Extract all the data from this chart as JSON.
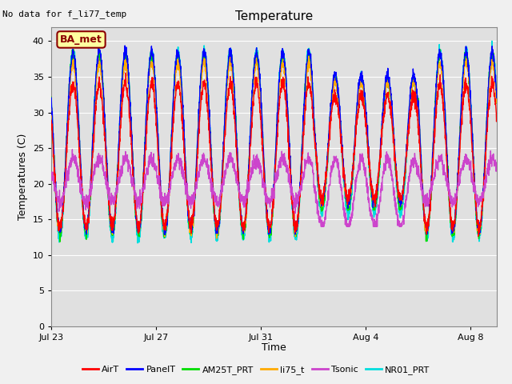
{
  "title": "Temperature",
  "xlabel": "Time",
  "ylabel": "Temperatures (C)",
  "note": "No data for f_li77_temp",
  "legend_label": "BA_met",
  "ylim": [
    0,
    42
  ],
  "yticks": [
    0,
    5,
    10,
    15,
    20,
    25,
    30,
    35,
    40
  ],
  "series": {
    "AirT": {
      "color": "#ff0000",
      "lw": 1.0
    },
    "PanelT": {
      "color": "#0000ff",
      "lw": 1.0
    },
    "AM25T_PRT": {
      "color": "#00dd00",
      "lw": 1.0
    },
    "li75_t": {
      "color": "#ffaa00",
      "lw": 1.0
    },
    "Tsonic": {
      "color": "#cc44cc",
      "lw": 1.0
    },
    "NR01_PRT": {
      "color": "#00dddd",
      "lw": 1.2
    }
  },
  "xtick_labels": [
    "Jul 23",
    "Jul 27",
    "Jul 31",
    "Aug 4",
    "Aug 8"
  ],
  "xtick_positions": [
    0,
    4,
    8,
    12,
    16
  ],
  "num_days": 17,
  "fig_facecolor": "#f0f0f0",
  "ax_facecolor": "#e0e0e0"
}
